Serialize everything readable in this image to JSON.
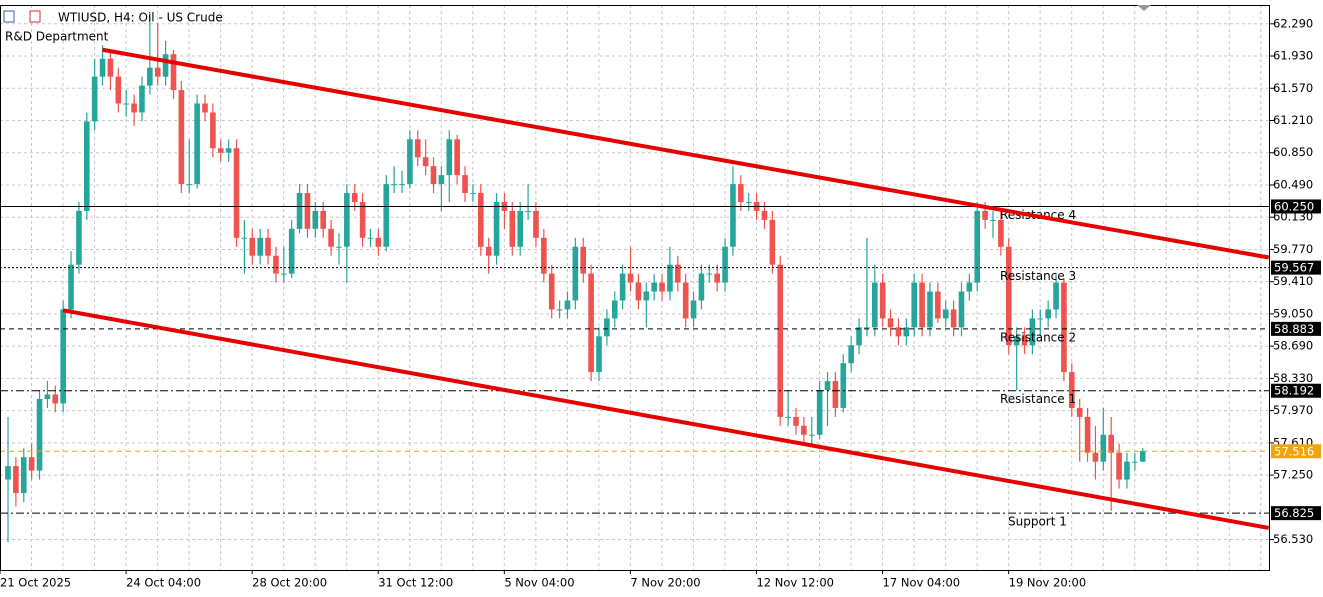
{
  "chart_data": {
    "type": "candlestick",
    "title": "WTIUSD, H4:  Oil - US Crude",
    "subtitle": "R&D Department",
    "bull_color": "#26a69a",
    "bear_color": "#ef5350",
    "grid": true,
    "ylim": [
      56.19,
      62.5
    ],
    "yticks": [
      {
        "value": 62.29,
        "label": "62.290"
      },
      {
        "value": 61.93,
        "label": "61.930"
      },
      {
        "value": 61.57,
        "label": "61.570"
      },
      {
        "value": 61.21,
        "label": "61.210"
      },
      {
        "value": 60.85,
        "label": "60.850"
      },
      {
        "value": 60.49,
        "label": "60.490"
      },
      {
        "value": 60.13,
        "label": "60.130"
      },
      {
        "value": 59.77,
        "label": "59.770"
      },
      {
        "value": 59.41,
        "label": "59.410"
      },
      {
        "value": 59.05,
        "label": "59.050"
      },
      {
        "value": 58.69,
        "label": "58.690"
      },
      {
        "value": 58.33,
        "label": "58.330"
      },
      {
        "value": 57.97,
        "label": "57.970"
      },
      {
        "value": 57.61,
        "label": "57.610"
      },
      {
        "value": 57.25,
        "label": "57.250"
      },
      {
        "value": 56.53,
        "label": "56.530"
      }
    ],
    "categories": [
      "21 Oct 2025",
      null,
      null,
      null,
      null,
      null,
      null,
      null,
      null,
      null,
      null,
      null,
      null,
      null,
      null,
      null,
      "24 Oct 04:00",
      null,
      null,
      null,
      null,
      null,
      null,
      null,
      null,
      null,
      null,
      null,
      null,
      null,
      null,
      null,
      "28 Oct 20:00",
      null,
      null,
      null,
      null,
      null,
      null,
      null,
      null,
      null,
      null,
      null,
      null,
      null,
      null,
      null,
      "31 Oct 12:00",
      null,
      null,
      null,
      null,
      null,
      null,
      null,
      null,
      null,
      null,
      null,
      null,
      null,
      null,
      null,
      "5 Nov 04:00",
      null,
      null,
      null,
      null,
      null,
      null,
      null,
      null,
      null,
      null,
      null,
      null,
      null,
      null,
      null,
      "7 Nov 20:00",
      null,
      null,
      null,
      null,
      null,
      null,
      null,
      null,
      null,
      null,
      null,
      null,
      null,
      null,
      null,
      "12 Nov 12:00",
      null,
      null,
      null,
      null,
      null,
      null,
      null,
      null,
      null,
      null,
      null,
      null,
      null,
      null,
      null,
      "17 Nov 04:00",
      null,
      null,
      null,
      null,
      null,
      null,
      null,
      null,
      null,
      null,
      null,
      null,
      null,
      null,
      null,
      "19 Nov 20:00",
      null,
      null,
      null,
      null,
      null,
      null,
      null,
      null,
      null,
      null,
      null,
      null,
      null,
      null,
      null,
      null
    ],
    "ohlc": [
      [
        57.2,
        57.9,
        56.5,
        57.35
      ],
      [
        57.35,
        57.45,
        56.9,
        57.05
      ],
      [
        57.05,
        57.55,
        56.95,
        57.45
      ],
      [
        57.45,
        57.6,
        57.2,
        57.3
      ],
      [
        57.3,
        58.2,
        57.2,
        58.1
      ],
      [
        58.1,
        58.3,
        58.0,
        58.15
      ],
      [
        58.15,
        58.25,
        57.95,
        58.05
      ],
      [
        58.05,
        59.2,
        57.95,
        59.1
      ],
      [
        59.1,
        59.75,
        59.0,
        59.6
      ],
      [
        59.6,
        60.3,
        59.5,
        60.2
      ],
      [
        60.2,
        61.3,
        60.1,
        61.2
      ],
      [
        61.2,
        61.9,
        61.1,
        61.7
      ],
      [
        61.7,
        62.05,
        61.6,
        61.9
      ],
      [
        61.9,
        62.0,
        61.55,
        61.7
      ],
      [
        61.7,
        61.8,
        61.3,
        61.4
      ],
      [
        61.4,
        61.55,
        61.25,
        61.4
      ],
      [
        61.4,
        61.5,
        61.15,
        61.3
      ],
      [
        61.3,
        61.7,
        61.2,
        61.6
      ],
      [
        61.6,
        62.4,
        61.5,
        61.8
      ],
      [
        61.8,
        62.3,
        61.6,
        61.7
      ],
      [
        61.7,
        62.1,
        61.6,
        61.95
      ],
      [
        61.95,
        62.0,
        61.45,
        61.55
      ],
      [
        61.55,
        61.65,
        60.4,
        60.5
      ],
      [
        60.5,
        61.0,
        60.4,
        60.5
      ],
      [
        60.5,
        61.5,
        60.45,
        61.4
      ],
      [
        61.4,
        61.5,
        61.2,
        61.3
      ],
      [
        61.3,
        61.4,
        60.8,
        60.9
      ],
      [
        60.9,
        61.0,
        60.75,
        60.85
      ],
      [
        60.85,
        61.0,
        60.75,
        60.9
      ],
      [
        60.9,
        61.0,
        59.8,
        59.9
      ],
      [
        59.9,
        60.1,
        59.5,
        59.9
      ],
      [
        59.9,
        60.0,
        59.6,
        59.7
      ],
      [
        59.7,
        60.0,
        59.6,
        59.9
      ],
      [
        59.9,
        60.0,
        59.6,
        59.7
      ],
      [
        59.7,
        59.8,
        59.4,
        59.5
      ],
      [
        59.5,
        59.8,
        59.4,
        59.5
      ],
      [
        59.5,
        60.1,
        59.45,
        60.0
      ],
      [
        60.0,
        60.5,
        59.95,
        60.4
      ],
      [
        60.4,
        60.5,
        59.9,
        60.0
      ],
      [
        60.0,
        60.3,
        59.9,
        60.2
      ],
      [
        60.2,
        60.3,
        59.9,
        60.0
      ],
      [
        60.0,
        60.1,
        59.7,
        59.8
      ],
      [
        59.8,
        59.95,
        59.6,
        59.8
      ],
      [
        59.8,
        60.5,
        59.4,
        60.4
      ],
      [
        60.4,
        60.5,
        60.2,
        60.3
      ],
      [
        60.3,
        60.4,
        59.8,
        59.9
      ],
      [
        59.9,
        60.0,
        59.8,
        59.9
      ],
      [
        59.9,
        60.0,
        59.7,
        59.8
      ],
      [
        59.8,
        60.6,
        59.75,
        60.5
      ],
      [
        60.5,
        60.7,
        60.4,
        60.5
      ],
      [
        60.5,
        60.65,
        60.4,
        60.5
      ],
      [
        60.5,
        61.1,
        60.45,
        61.0
      ],
      [
        61.0,
        61.1,
        60.7,
        60.8
      ],
      [
        60.8,
        61.0,
        60.6,
        60.7
      ],
      [
        60.7,
        60.8,
        60.4,
        60.5
      ],
      [
        60.5,
        60.7,
        60.2,
        60.6
      ],
      [
        60.6,
        61.1,
        60.3,
        61.0
      ],
      [
        61.0,
        61.05,
        60.5,
        60.6
      ],
      [
        60.6,
        60.7,
        60.3,
        60.4
      ],
      [
        60.4,
        60.5,
        60.3,
        60.4
      ],
      [
        60.4,
        60.5,
        59.7,
        59.8
      ],
      [
        59.8,
        59.9,
        59.5,
        59.7
      ],
      [
        59.7,
        60.4,
        59.6,
        60.3
      ],
      [
        60.3,
        60.4,
        60.0,
        60.2
      ],
      [
        60.2,
        60.3,
        59.7,
        59.8
      ],
      [
        59.8,
        60.3,
        59.7,
        60.2
      ],
      [
        60.2,
        60.5,
        60.1,
        60.2
      ],
      [
        60.2,
        60.3,
        59.8,
        59.9
      ],
      [
        59.9,
        60.0,
        59.4,
        59.5
      ],
      [
        59.5,
        59.6,
        59.0,
        59.1
      ],
      [
        59.1,
        59.2,
        59.0,
        59.1
      ],
      [
        59.1,
        59.3,
        59.0,
        59.2
      ],
      [
        59.2,
        59.9,
        59.1,
        59.8
      ],
      [
        59.8,
        59.9,
        59.4,
        59.5
      ],
      [
        59.5,
        59.6,
        58.3,
        58.4
      ],
      [
        58.4,
        58.9,
        58.3,
        58.8
      ],
      [
        58.8,
        59.1,
        58.7,
        59.0
      ],
      [
        59.0,
        59.3,
        58.9,
        59.2
      ],
      [
        59.2,
        59.6,
        59.1,
        59.5
      ],
      [
        59.5,
        59.8,
        59.3,
        59.4
      ],
      [
        59.4,
        59.5,
        59.1,
        59.2
      ],
      [
        59.2,
        59.4,
        58.9,
        59.3
      ],
      [
        59.3,
        59.5,
        59.2,
        59.4
      ],
      [
        59.4,
        59.5,
        59.2,
        59.3
      ],
      [
        59.3,
        59.8,
        59.2,
        59.6
      ],
      [
        59.6,
        59.7,
        59.3,
        59.4
      ],
      [
        59.4,
        59.5,
        58.9,
        59.0
      ],
      [
        59.0,
        59.3,
        58.9,
        59.2
      ],
      [
        59.2,
        59.6,
        59.1,
        59.5
      ],
      [
        59.5,
        59.6,
        59.4,
        59.5
      ],
      [
        59.5,
        59.6,
        59.3,
        59.4
      ],
      [
        59.4,
        59.9,
        59.3,
        59.8
      ],
      [
        59.8,
        60.7,
        59.7,
        60.5
      ],
      [
        60.5,
        60.6,
        60.2,
        60.3
      ],
      [
        60.3,
        60.4,
        60.2,
        60.3
      ],
      [
        60.3,
        60.4,
        60.1,
        60.2
      ],
      [
        60.2,
        60.3,
        60.0,
        60.1
      ],
      [
        60.1,
        60.2,
        59.5,
        59.6
      ],
      [
        59.6,
        59.7,
        57.8,
        57.9
      ],
      [
        57.9,
        58.2,
        57.8,
        57.9
      ],
      [
        57.9,
        58.0,
        57.7,
        57.8
      ],
      [
        57.8,
        57.9,
        57.6,
        57.7
      ],
      [
        57.7,
        57.9,
        57.6,
        57.7
      ],
      [
        57.7,
        58.3,
        57.65,
        58.2
      ],
      [
        58.2,
        58.4,
        57.8,
        58.3
      ],
      [
        58.3,
        58.4,
        57.9,
        58.0
      ],
      [
        58.0,
        58.6,
        57.95,
        58.5
      ],
      [
        58.5,
        58.8,
        58.4,
        58.7
      ],
      [
        58.7,
        59.0,
        58.6,
        58.9
      ],
      [
        58.9,
        59.9,
        58.8,
        58.9
      ],
      [
        58.9,
        59.6,
        58.8,
        59.4
      ],
      [
        59.4,
        59.5,
        58.9,
        59.0
      ],
      [
        59.0,
        59.1,
        58.8,
        58.9
      ],
      [
        58.9,
        59.0,
        58.7,
        58.8
      ],
      [
        58.8,
        59.0,
        58.7,
        58.9
      ],
      [
        58.9,
        59.5,
        58.8,
        59.4
      ],
      [
        59.4,
        59.5,
        58.8,
        58.9
      ],
      [
        58.9,
        59.4,
        58.8,
        59.3
      ],
      [
        59.3,
        59.4,
        58.95,
        59.0
      ],
      [
        59.0,
        59.2,
        58.9,
        59.1
      ],
      [
        59.1,
        59.2,
        58.8,
        58.9
      ],
      [
        58.9,
        59.4,
        58.8,
        59.3
      ],
      [
        59.3,
        59.5,
        59.2,
        59.4
      ],
      [
        59.4,
        60.3,
        59.3,
        60.2
      ],
      [
        60.2,
        60.3,
        60.0,
        60.1
      ],
      [
        60.1,
        60.2,
        59.9,
        60.1
      ],
      [
        60.1,
        60.2,
        59.7,
        59.8
      ],
      [
        59.8,
        59.9,
        58.6,
        58.7
      ],
      [
        58.7,
        58.9,
        58.2,
        58.8
      ],
      [
        58.8,
        58.9,
        58.6,
        58.7
      ],
      [
        58.7,
        59.1,
        58.6,
        59.0
      ],
      [
        59.0,
        59.1,
        58.8,
        59.0
      ],
      [
        59.0,
        59.2,
        58.9,
        59.1
      ],
      [
        59.1,
        59.5,
        59.0,
        59.4
      ],
      [
        59.4,
        59.45,
        58.3,
        58.4
      ],
      [
        58.4,
        58.5,
        57.9,
        58.0
      ],
      [
        58.0,
        58.1,
        57.4,
        57.9
      ],
      [
        57.9,
        58.0,
        57.4,
        57.5
      ],
      [
        57.5,
        57.8,
        57.2,
        57.4
      ],
      [
        57.4,
        58.0,
        57.3,
        57.7
      ],
      [
        57.7,
        57.9,
        56.85,
        57.5
      ],
      [
        57.5,
        57.6,
        57.1,
        57.2
      ],
      [
        57.2,
        57.5,
        57.1,
        57.4
      ],
      [
        57.4,
        57.5,
        57.3,
        57.4
      ],
      [
        57.4,
        57.55,
        57.4,
        57.52
      ]
    ],
    "levels": [
      {
        "value": 60.25,
        "label": "60.250",
        "name": "Resistance 4",
        "style": "solid",
        "color": "#000000"
      },
      {
        "value": 59.567,
        "label": "59.567",
        "name": "Resistance 3",
        "style": "dotted",
        "color": "#000000"
      },
      {
        "value": 58.883,
        "label": "58.883",
        "name": "Resistance 2",
        "style": "dashed",
        "color": "#000000"
      },
      {
        "value": 58.192,
        "label": "58.192",
        "name": "Resistance 1",
        "style": "dashdot",
        "color": "#000000"
      },
      {
        "value": 57.516,
        "label": "57.516",
        "style": "dashed",
        "color": "#f0a30a"
      },
      {
        "value": 56.825,
        "label": "56.825",
        "name": "Support 1",
        "style": "dashdot",
        "color": "#000000"
      }
    ],
    "trendlines": [
      {
        "start": [
          12,
          62.0
        ],
        "end": [
          160,
          59.68
        ],
        "color": "#e60000"
      },
      {
        "start": [
          7,
          59.09
        ],
        "end": [
          160,
          56.66
        ],
        "color": "#e60000"
      }
    ]
  }
}
